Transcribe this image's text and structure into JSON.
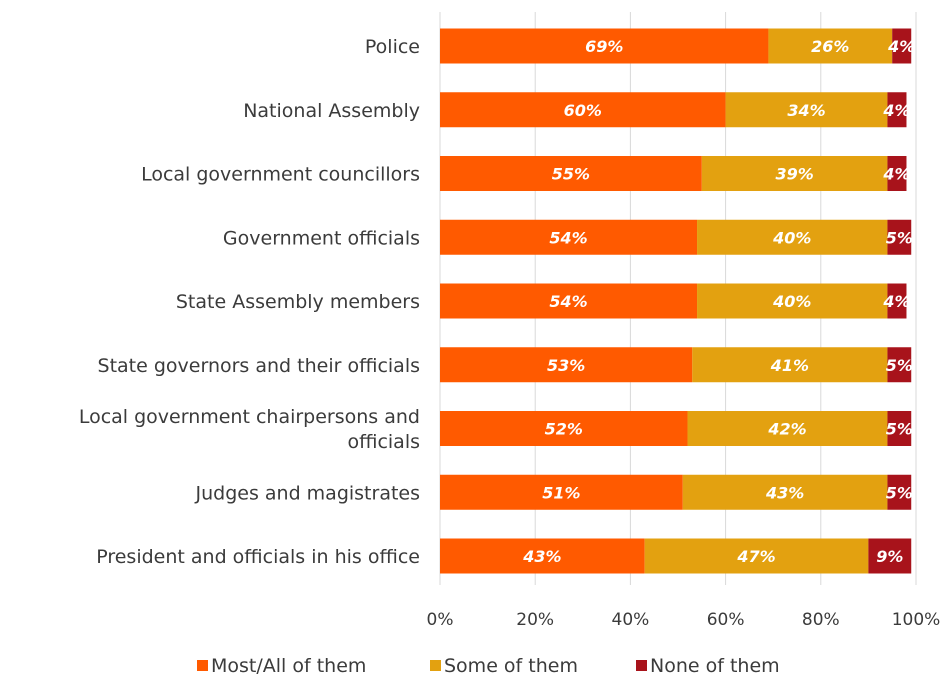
{
  "chart_data": {
    "type": "bar",
    "orientation": "horizontal",
    "stacked": true,
    "categories": [
      [
        "Police"
      ],
      [
        "National Assembly"
      ],
      [
        "Local government councillors"
      ],
      [
        "Government officials"
      ],
      [
        "State Assembly members"
      ],
      [
        "State governors and their officials"
      ],
      [
        "Local government chairpersons and",
        "officials"
      ],
      [
        "Judges and magistrates"
      ],
      [
        "President and officials in his office"
      ]
    ],
    "series": [
      {
        "name": "Most/All of them",
        "color": "#ff5a00",
        "values": [
          69,
          60,
          55,
          54,
          54,
          53,
          52,
          51,
          43
        ],
        "labels": [
          "69%",
          "60%",
          "55%",
          "54%",
          "54%",
          "53%",
          "52%",
          "51%",
          "43%"
        ]
      },
      {
        "name": "Some of them",
        "color": "#e3a110",
        "values": [
          26,
          34,
          39,
          40,
          40,
          41,
          42,
          43,
          47
        ],
        "labels": [
          "26%",
          "34%",
          "39%",
          "40%",
          "40%",
          "41%",
          "42%",
          "43%",
          "47%"
        ]
      },
      {
        "name": "None of them",
        "color": "#a8131b",
        "values": [
          4,
          4,
          4,
          5,
          4,
          5,
          5,
          5,
          9
        ],
        "labels": [
          "4%",
          "4%",
          "4%",
          "5%",
          "4%",
          "5%",
          "5%",
          "5%",
          "9%"
        ]
      }
    ],
    "xlim": [
      0,
      100
    ],
    "xticks": [
      0,
      20,
      40,
      60,
      80,
      100
    ],
    "xtick_labels": [
      "0%",
      "20%",
      "40%",
      "60%",
      "80%",
      "100%"
    ],
    "grid": true,
    "legend_position": "bottom"
  }
}
